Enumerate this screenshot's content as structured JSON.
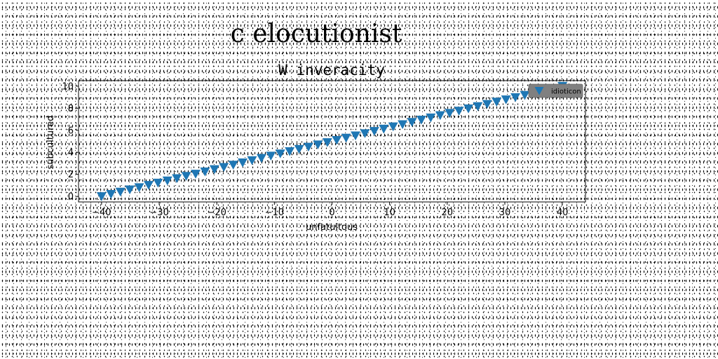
{
  "figure": {
    "suptitle": "c elocutionist"
  },
  "chart_data": {
    "type": "scatter",
    "title": "W inveracity",
    "xlabel": "unfatuitous",
    "ylabel": "subcultured",
    "xlim": [
      -44,
      44
    ],
    "ylim": [
      -0.5,
      10.5
    ],
    "xticks": [
      -40,
      -30,
      -20,
      -10,
      0,
      10,
      20,
      30,
      40
    ],
    "yticks": [
      0,
      2,
      4,
      6,
      8,
      10
    ],
    "xtick_labels": [
      "−40",
      "−30",
      "−20",
      "−10",
      "0",
      "10",
      "20",
      "30",
      "40"
    ],
    "ytick_labels": [
      "0",
      "2",
      "4",
      "6",
      "8",
      "10"
    ],
    "grid": false,
    "legend_position": "top-right",
    "series": [
      {
        "name": "idioticon",
        "marker": "triangle-down",
        "color": "#1f77b4",
        "x_start": -40,
        "x_end": 40,
        "count": 50,
        "y_start": 0,
        "y_end": 10
      }
    ]
  }
}
